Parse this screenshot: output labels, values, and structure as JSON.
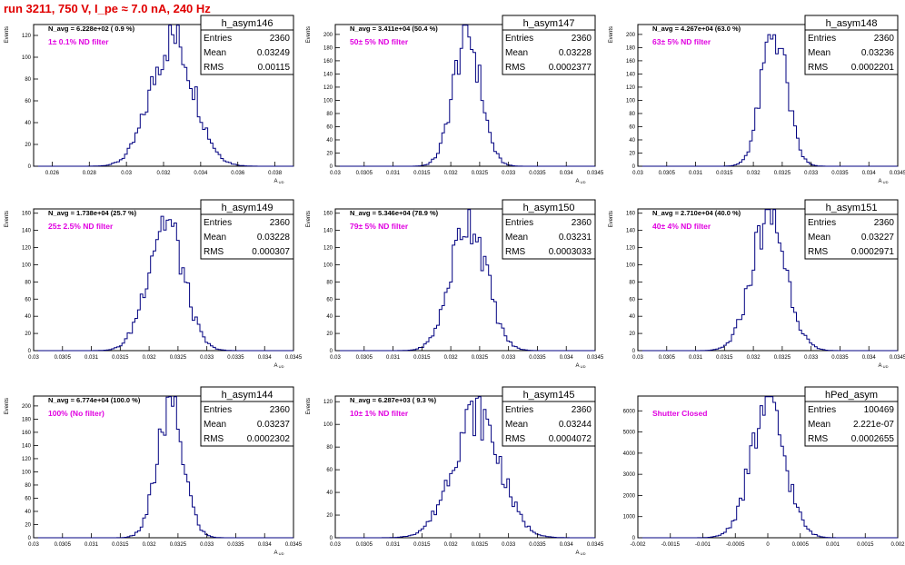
{
  "page_title": "run 3211,   750 V, I_pe ≈ 7.0 nA, 240 Hz",
  "colors": {
    "title": "#e00000",
    "histogram": "#000080",
    "annotation": "#e000e0",
    "frame": "#000000"
  },
  "chart_data": [
    {
      "type": "bar",
      "name": "h_asym146",
      "stats": {
        "entries_label": "Entries",
        "entries": "2360",
        "mean_label": "Mean",
        "mean": "0.03249",
        "rms_label": "RMS",
        "rms": "0.00115"
      },
      "navg": "N_avg = 6.228e+02 ( 0.9 %)",
      "note": "1± 0.1% ND filter",
      "ylabel": "Events",
      "xlabel": "A_UD",
      "xlim": [
        0.025,
        0.039
      ],
      "ylim": [
        0,
        130
      ],
      "xticks": [
        0.026,
        0.028,
        0.03,
        0.032,
        0.034,
        0.036,
        0.038
      ],
      "xtick_labels": [
        "0.026",
        "0.028",
        "0.03",
        "0.032",
        "0.034",
        "0.036",
        "0.038"
      ],
      "yticks": [
        0,
        20,
        40,
        60,
        80,
        100,
        120
      ],
      "mean_value": 0.03249,
      "sigma": 0.00115,
      "peak": 118
    },
    {
      "type": "bar",
      "name": "h_asym147",
      "stats": {
        "entries_label": "Entries",
        "entries": "2360",
        "mean_label": "Mean",
        "mean": "0.03228",
        "rms_label": "RMS",
        "rms": "0.0002377"
      },
      "navg": "N_avg = 3.411e+04 (50.4 %)",
      "note": "50± 5% ND filter",
      "ylabel": "Events",
      "xlabel": "A_UD",
      "xlim": [
        0.03,
        0.0345
      ],
      "ylim": [
        0,
        215
      ],
      "xticks": [
        0.03,
        0.0305,
        0.031,
        0.0315,
        0.032,
        0.0325,
        0.033,
        0.0335,
        0.034,
        0.0345
      ],
      "xtick_labels": [
        "0.03",
        "0.0305",
        "0.031",
        "0.0315",
        "0.032",
        "0.0325",
        "0.033",
        "0.0335",
        "0.034",
        "0.0345"
      ],
      "yticks": [
        0,
        20,
        40,
        60,
        80,
        100,
        120,
        140,
        160,
        180,
        200
      ],
      "mean_value": 0.03228,
      "sigma": 0.0002377,
      "peak": 200
    },
    {
      "type": "bar",
      "name": "h_asym148",
      "stats": {
        "entries_label": "Entries",
        "entries": "2360",
        "mean_label": "Mean",
        "mean": "0.03236",
        "rms_label": "RMS",
        "rms": "0.0002201"
      },
      "navg": "N_avg = 4.267e+04 (63.0 %)",
      "note": "63± 5% ND filter",
      "ylabel": "Events",
      "xlabel": "A_UD",
      "xlim": [
        0.03,
        0.0345
      ],
      "ylim": [
        0,
        215
      ],
      "xticks": [
        0.03,
        0.0305,
        0.031,
        0.0315,
        0.032,
        0.0325,
        0.033,
        0.0335,
        0.034,
        0.0345
      ],
      "xtick_labels": [
        "0.03",
        "0.0305",
        "0.031",
        "0.0315",
        "0.032",
        "0.0325",
        "0.033",
        "0.0335",
        "0.034",
        "0.0345"
      ],
      "yticks": [
        0,
        20,
        40,
        60,
        80,
        100,
        120,
        140,
        160,
        180,
        200
      ],
      "mean_value": 0.03236,
      "sigma": 0.0002201,
      "peak": 205
    },
    {
      "type": "bar",
      "name": "h_asym149",
      "stats": {
        "entries_label": "Entries",
        "entries": "2360",
        "mean_label": "Mean",
        "mean": "0.03228",
        "rms_label": "RMS",
        "rms": "0.000307"
      },
      "navg": "N_avg = 1.738e+04 (25.7 %)",
      "note": "25± 2.5% ND filter",
      "ylabel": "Events",
      "xlabel": "A_UD",
      "xlim": [
        0.03,
        0.0345
      ],
      "ylim": [
        0,
        165
      ],
      "xticks": [
        0.03,
        0.0305,
        0.031,
        0.0315,
        0.032,
        0.0325,
        0.033,
        0.0335,
        0.034,
        0.0345
      ],
      "xtick_labels": [
        "0.03",
        "0.0305",
        "0.031",
        "0.0315",
        "0.032",
        "0.0325",
        "0.033",
        "0.0335",
        "0.034",
        "0.0345"
      ],
      "yticks": [
        0,
        20,
        40,
        60,
        80,
        100,
        120,
        140,
        160
      ],
      "mean_value": 0.03228,
      "sigma": 0.000307,
      "peak": 152
    },
    {
      "type": "bar",
      "name": "h_asym150",
      "stats": {
        "entries_label": "Entries",
        "entries": "2360",
        "mean_label": "Mean",
        "mean": "0.03231",
        "rms_label": "RMS",
        "rms": "0.0003033"
      },
      "navg": "N_avg = 5.346e+04 (78.9 %)",
      "note": "79± 5% ND filter",
      "ylabel": "Events",
      "xlabel": "A_UD",
      "xlim": [
        0.03,
        0.0345
      ],
      "ylim": [
        0,
        165
      ],
      "xticks": [
        0.03,
        0.0305,
        0.031,
        0.0315,
        0.032,
        0.0325,
        0.033,
        0.0335,
        0.034,
        0.0345
      ],
      "xtick_labels": [
        "0.03",
        "0.0305",
        "0.031",
        "0.0315",
        "0.032",
        "0.0325",
        "0.033",
        "0.0335",
        "0.034",
        "0.0345"
      ],
      "yticks": [
        0,
        20,
        40,
        60,
        80,
        100,
        120,
        140,
        160
      ],
      "mean_value": 0.03231,
      "sigma": 0.0003033,
      "peak": 155
    },
    {
      "type": "bar",
      "name": "h_asym151",
      "stats": {
        "entries_label": "Entries",
        "entries": "2360",
        "mean_label": "Mean",
        "mean": "0.03227",
        "rms_label": "RMS",
        "rms": "0.0002971"
      },
      "navg": "N_avg = 2.710e+04 (40.0 %)",
      "note": "40± 4% ND filter",
      "ylabel": "Events",
      "xlabel": "A_UD",
      "xlim": [
        0.03,
        0.0345
      ],
      "ylim": [
        0,
        165
      ],
      "xticks": [
        0.03,
        0.0305,
        0.031,
        0.0315,
        0.032,
        0.0325,
        0.033,
        0.0335,
        0.034,
        0.0345
      ],
      "xtick_labels": [
        "0.03",
        "0.0305",
        "0.031",
        "0.0315",
        "0.032",
        "0.0325",
        "0.033",
        "0.0335",
        "0.034",
        "0.0345"
      ],
      "yticks": [
        0,
        20,
        40,
        60,
        80,
        100,
        120,
        140,
        160
      ],
      "mean_value": 0.03227,
      "sigma": 0.0002971,
      "peak": 158
    },
    {
      "type": "bar",
      "name": "h_asym144",
      "stats": {
        "entries_label": "Entries",
        "entries": "2360",
        "mean_label": "Mean",
        "mean": "0.03237",
        "rms_label": "RMS",
        "rms": "0.0002302"
      },
      "navg": "N_avg = 6.774e+04 (100.0 %)",
      "note": "100% (No filter)",
      "ylabel": "Events",
      "xlabel": "A_UD",
      "xlim": [
        0.03,
        0.0345
      ],
      "ylim": [
        0,
        215
      ],
      "xticks": [
        0.03,
        0.0305,
        0.031,
        0.0315,
        0.032,
        0.0325,
        0.033,
        0.0335,
        0.034,
        0.0345
      ],
      "xtick_labels": [
        "0.03",
        "0.0305",
        "0.031",
        "0.0315",
        "0.032",
        "0.0325",
        "0.033",
        "0.0335",
        "0.034",
        "0.0345"
      ],
      "yticks": [
        0,
        20,
        40,
        60,
        80,
        100,
        120,
        140,
        160,
        180,
        200
      ],
      "mean_value": 0.03237,
      "sigma": 0.0002302,
      "peak": 195
    },
    {
      "type": "bar",
      "name": "h_asym145",
      "stats": {
        "entries_label": "Entries",
        "entries": "2360",
        "mean_label": "Mean",
        "mean": "0.03244",
        "rms_label": "RMS",
        "rms": "0.0004072"
      },
      "navg": "N_avg = 6.287e+03 ( 9.3 %)",
      "note": "10± 1% ND filter",
      "ylabel": "Events",
      "xlabel": "A_UD",
      "xlim": [
        0.03,
        0.0345
      ],
      "ylim": [
        0,
        125
      ],
      "xticks": [
        0.03,
        0.0305,
        0.031,
        0.0315,
        0.032,
        0.0325,
        0.033,
        0.0335,
        0.034,
        0.0345
      ],
      "xtick_labels": [
        "0.03",
        "0.0305",
        "0.031",
        "0.0315",
        "0.032",
        "0.0325",
        "0.033",
        "0.0335",
        "0.034",
        "0.0345"
      ],
      "yticks": [
        0,
        20,
        40,
        60,
        80,
        100,
        120
      ],
      "mean_value": 0.03244,
      "sigma": 0.0004072,
      "peak": 110
    },
    {
      "type": "bar",
      "name": "hPed_asym",
      "stats": {
        "entries_label": "Entries",
        "entries": "100469",
        "mean_label": "Mean",
        "mean": "2.221e-07",
        "rms_label": "RMS",
        "rms": "0.0002655"
      },
      "navg": "",
      "note": "Shutter Closed",
      "ylabel": "",
      "xlabel": "",
      "xlim": [
        -0.002,
        0.002
      ],
      "ylim": [
        0,
        6700
      ],
      "xticks": [
        -0.002,
        -0.0015,
        -0.001,
        -0.0005,
        0,
        0.0005,
        0.001,
        0.0015,
        0.002
      ],
      "xtick_labels": [
        "-0.002",
        "-0.0015",
        "-0.001",
        "-0.0005",
        "0",
        "0.0005",
        "0.001",
        "0.0015",
        "0.002"
      ],
      "yticks": [
        0,
        1000,
        2000,
        3000,
        4000,
        5000,
        6000
      ],
      "mean_value": 2.22e-07,
      "sigma": 0.0002655,
      "peak": 6150
    }
  ]
}
